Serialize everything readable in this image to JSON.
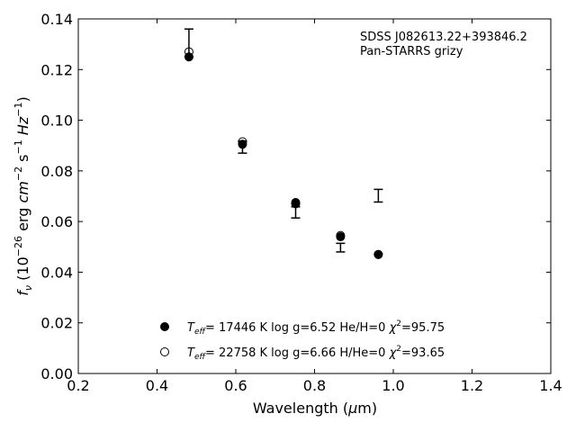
{
  "chart_data": {
    "type": "scatter",
    "title": "",
    "xlabel_pre": "Wavelength (",
    "xlabel_mu": "μ",
    "xlabel_post": "m)",
    "ylabel_f": "f",
    "ylabel_nu": "ν",
    "ylabel_mid": " (10",
    "ylabel_exp1": "−26",
    "ylabel_erg": " erg ",
    "ylabel_cm": "cm",
    "ylabel_exp2": "−2",
    "ylabel_s": " s",
    "ylabel_exp3": "−1",
    "ylabel_hz": " Hz",
    "ylabel_exp4": "−1",
    "ylabel_close": ")",
    "xlim": [
      0.2,
      1.4
    ],
    "ylim": [
      0.0,
      0.14
    ],
    "xticks": [
      "0.2",
      "0.4",
      "0.6",
      "0.8",
      "1.0",
      "1.2",
      "1.4"
    ],
    "yticks": [
      "0.00",
      "0.02",
      "0.04",
      "0.06",
      "0.08",
      "0.10",
      "0.12",
      "0.14"
    ],
    "annotation": [
      "SDSS J082613.22+393846.2",
      "Pan-STARRS grizy"
    ],
    "observed": {
      "x": [
        0.481,
        0.617,
        0.752,
        0.866,
        0.962
      ],
      "y": [
        0.1306,
        0.0894,
        0.0636,
        0.0497,
        0.0702
      ],
      "yerr": [
        0.0054,
        0.0024,
        0.0022,
        0.0017,
        0.0025
      ]
    },
    "series": [
      {
        "legend_parts": [
          "T",
          "eff",
          "= 17446 K  log g=6.52  He/H=0  ",
          "χ",
          "2",
          "=95.75"
        ],
        "marker": "filled",
        "x": [
          0.481,
          0.617,
          0.752,
          0.866,
          0.962
        ],
        "y": [
          0.125,
          0.0905,
          0.0675,
          0.054,
          0.047
        ]
      },
      {
        "legend_parts": [
          "T",
          "eff",
          "= 22758 K  log g=6.66  H/He=0  ",
          "χ",
          "2",
          "=93.65"
        ],
        "marker": "open",
        "x": [
          0.481,
          0.617,
          0.752,
          0.866,
          0.962
        ],
        "y": [
          0.127,
          0.0915,
          0.067,
          0.0545,
          0.047
        ]
      }
    ]
  }
}
